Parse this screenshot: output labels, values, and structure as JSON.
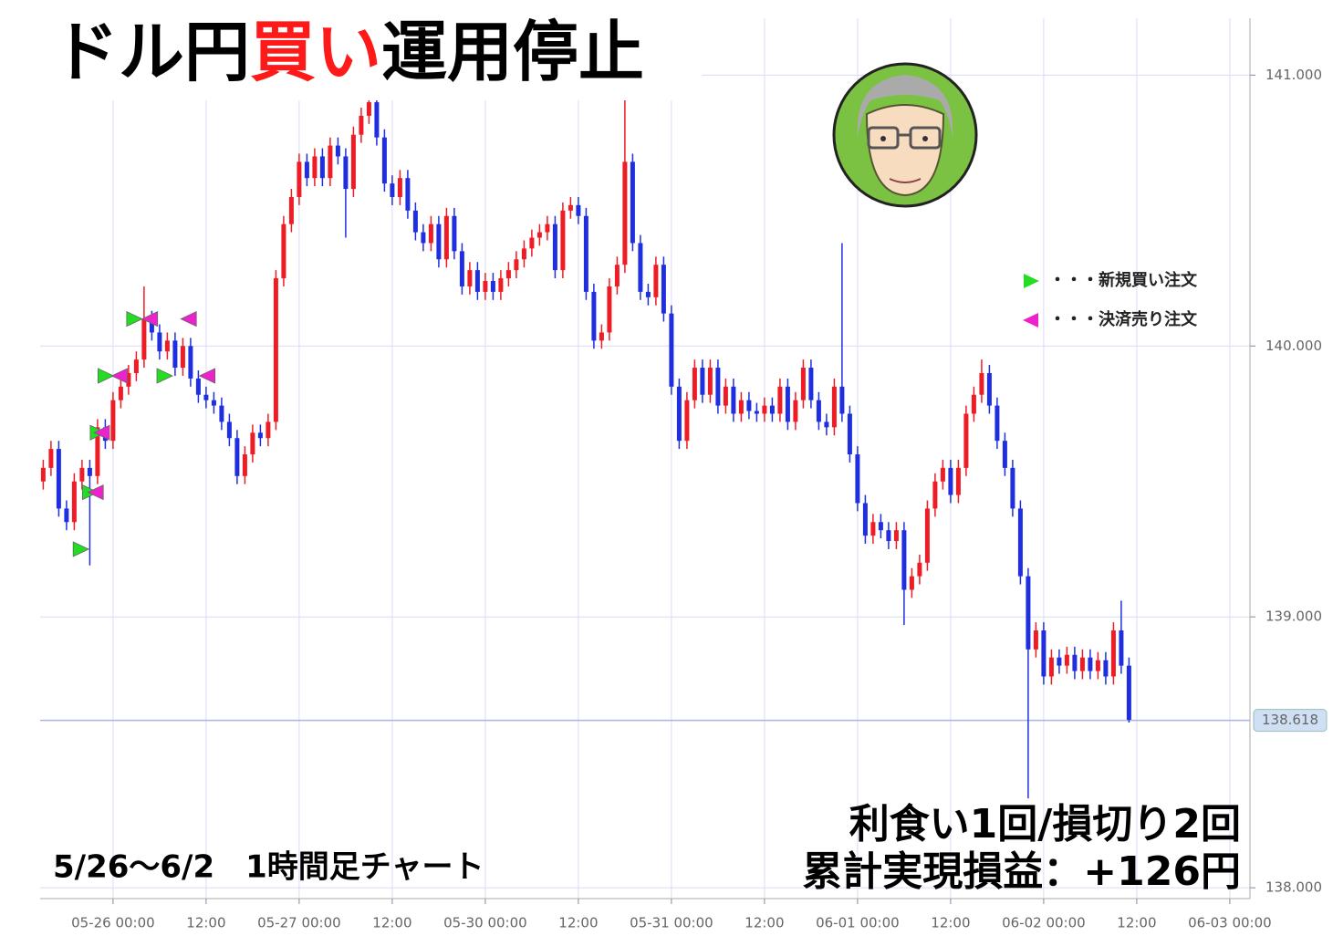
{
  "chart_data": {
    "type": "candlestick",
    "title_parts": [
      {
        "text": "ドル円",
        "color": "#000000"
      },
      {
        "text": "買い",
        "color": "#ff1a1a"
      },
      {
        "text": "運用停止",
        "color": "#000000"
      }
    ],
    "period_label": "5/26〜6/2　1時間足チャート",
    "result_lines": [
      "利食い1回/損切り2回",
      "累計実現損益：+126円"
    ],
    "up_color": "#ee1c25",
    "down_color": "#1f2fe0",
    "x": [
      -9,
      -8,
      -7,
      -6,
      -5,
      -4,
      -3,
      -2,
      -1,
      0,
      1,
      2,
      3,
      4,
      5,
      6,
      7,
      8,
      9,
      10,
      11,
      12,
      13,
      14,
      15,
      16,
      17,
      18,
      19,
      20,
      21,
      22,
      23,
      24,
      25,
      26,
      27,
      28,
      29,
      30,
      31,
      32,
      33,
      34,
      35,
      36,
      37,
      38,
      39,
      40,
      41,
      42,
      43,
      44,
      45,
      46,
      47,
      48,
      49,
      50,
      51,
      52,
      53,
      54,
      55,
      56,
      57,
      58,
      59,
      60,
      61,
      62,
      63,
      64,
      65,
      66,
      67,
      68,
      69,
      70,
      71,
      72,
      73,
      74,
      75,
      76,
      77,
      78,
      79,
      80,
      81,
      82,
      83,
      84,
      85,
      86,
      87,
      88,
      89,
      90,
      91,
      92,
      93,
      94,
      95,
      96,
      97,
      98,
      99,
      100,
      101,
      102,
      103,
      104,
      105,
      106,
      107,
      108,
      109,
      110,
      111,
      112,
      113,
      114,
      115,
      116,
      117,
      118,
      119,
      120,
      121,
      122,
      123,
      124,
      125,
      126,
      127,
      128,
      129,
      130,
      131
    ],
    "open": [
      139.5,
      139.55,
      139.62,
      139.4,
      139.35,
      139.5,
      139.55,
      139.52,
      139.7,
      139.65,
      139.8,
      139.85,
      139.9,
      139.95,
      140.1,
      140.05,
      139.98,
      140.02,
      139.92,
      140,
      139.88,
      139.82,
      139.8,
      139.78,
      139.72,
      139.66,
      139.52,
      139.6,
      139.68,
      139.66,
      139.72,
      140.25,
      140.45,
      140.55,
      140.68,
      140.62,
      140.7,
      140.62,
      140.74,
      140.7,
      140.58,
      140.78,
      140.85,
      140.9,
      140.77,
      140.6,
      140.55,
      140.62,
      140.5,
      140.42,
      140.38,
      140.45,
      140.32,
      140.48,
      140.35,
      140.22,
      140.28,
      140.2,
      140.24,
      140.2,
      140.25,
      140.28,
      140.32,
      140.36,
      140.4,
      140.42,
      140.45,
      140.28,
      140.5,
      140.52,
      140.48,
      140.2,
      140.02,
      140.05,
      140.22,
      140.3,
      140.68,
      140.38,
      140.2,
      140.18,
      140.3,
      140.12,
      139.85,
      139.65,
      139.8,
      139.92,
      139.82,
      139.92,
      139.78,
      139.85,
      139.75,
      139.8,
      139.76,
      139.75,
      139.78,
      139.75,
      139.85,
      139.72,
      139.8,
      139.92,
      139.8,
      139.72,
      139.7,
      139.85,
      139.75,
      139.6,
      139.42,
      139.3,
      139.35,
      139.32,
      139.28,
      139.32,
      139.1,
      139.15,
      139.2,
      139.4,
      139.5,
      139.55,
      139.45,
      139.55,
      139.75,
      139.82,
      139.9,
      139.78,
      139.65,
      139.55,
      139.4,
      139.15,
      138.88,
      138.95,
      138.78,
      138.85,
      138.82,
      138.86,
      138.8,
      138.85,
      138.8,
      138.84,
      138.78,
      138.95,
      138.82
    ],
    "high": [
      139.58,
      139.65,
      139.65,
      139.43,
      139.53,
      139.58,
      139.58,
      139.73,
      139.73,
      139.83,
      139.88,
      139.93,
      139.98,
      140.22,
      140.13,
      140.08,
      140.05,
      140.05,
      140.03,
      140.03,
      139.91,
      139.85,
      139.83,
      139.81,
      139.75,
      139.69,
      139.63,
      139.71,
      139.71,
      139.75,
      140.28,
      140.48,
      140.58,
      140.71,
      140.71,
      140.73,
      140.73,
      140.77,
      140.77,
      140.73,
      140.81,
      140.88,
      140.93,
      140.95,
      140.8,
      140.63,
      140.65,
      140.65,
      140.53,
      140.45,
      140.48,
      140.48,
      140.51,
      140.51,
      140.38,
      140.31,
      140.31,
      140.27,
      140.27,
      140.28,
      140.31,
      140.35,
      140.39,
      140.43,
      140.45,
      140.48,
      140.48,
      140.53,
      140.55,
      140.55,
      140.51,
      140.23,
      140.08,
      140.25,
      140.33,
      140.95,
      140.71,
      140.41,
      140.23,
      140.33,
      140.33,
      140.15,
      139.88,
      139.83,
      139.95,
      139.95,
      139.95,
      139.95,
      139.88,
      139.88,
      139.83,
      139.83,
      139.79,
      139.81,
      139.81,
      139.88,
      139.88,
      139.83,
      139.95,
      139.95,
      139.83,
      139.75,
      139.88,
      140.38,
      139.78,
      139.63,
      139.45,
      139.38,
      139.38,
      139.35,
      139.35,
      139.35,
      139.18,
      139.23,
      139.43,
      139.53,
      139.58,
      139.58,
      139.58,
      139.78,
      139.85,
      139.95,
      139.93,
      139.81,
      139.68,
      139.58,
      139.43,
      139.18,
      138.98,
      138.98,
      138.88,
      138.88,
      138.89,
      138.89,
      138.88,
      138.88,
      138.87,
      138.87,
      138.98,
      139.06,
      138.85
    ],
    "low": [
      139.47,
      139.52,
      139.37,
      139.32,
      139.32,
      139.47,
      139.19,
      139.49,
      139.62,
      139.62,
      139.77,
      139.82,
      139.87,
      139.92,
      140.02,
      139.95,
      139.95,
      139.89,
      139.89,
      139.85,
      139.79,
      139.77,
      139.75,
      139.69,
      139.63,
      139.49,
      139.49,
      139.57,
      139.63,
      139.63,
      139.69,
      140.22,
      140.42,
      140.52,
      140.59,
      140.59,
      140.59,
      140.59,
      140.67,
      140.4,
      140.55,
      140.75,
      140.82,
      140.74,
      140.57,
      140.52,
      140.52,
      140.47,
      140.39,
      140.35,
      140.35,
      140.29,
      140.29,
      140.32,
      140.19,
      140.19,
      140.17,
      140.17,
      140.17,
      140.17,
      140.22,
      140.25,
      140.29,
      140.33,
      140.37,
      140.39,
      140.25,
      140.25,
      140.47,
      140.45,
      140.17,
      139.99,
      139.99,
      140.02,
      140.19,
      140.27,
      140.35,
      140.17,
      140.15,
      140.15,
      140.09,
      139.82,
      139.62,
      139.62,
      139.77,
      139.79,
      139.79,
      139.75,
      139.75,
      139.72,
      139.72,
      139.73,
      139.72,
      139.72,
      139.72,
      139.72,
      139.69,
      139.69,
      139.77,
      139.77,
      139.69,
      139.67,
      139.67,
      139.72,
      139.57,
      139.39,
      139.27,
      139.27,
      139.29,
      139.25,
      139.25,
      138.97,
      139.07,
      139.12,
      139.17,
      139.37,
      139.47,
      139.42,
      139.42,
      139.52,
      139.72,
      139.79,
      139.75,
      139.62,
      139.52,
      139.37,
      139.12,
      138.33,
      138.85,
      138.75,
      138.75,
      138.79,
      138.79,
      138.77,
      138.77,
      138.77,
      138.77,
      138.75,
      138.75,
      138.79,
      138.61
    ],
    "close": [
      139.55,
      139.62,
      139.4,
      139.35,
      139.5,
      139.55,
      139.52,
      139.7,
      139.65,
      139.8,
      139.85,
      139.9,
      139.95,
      140.1,
      140.05,
      139.98,
      140.02,
      139.92,
      140,
      139.88,
      139.82,
      139.8,
      139.78,
      139.72,
      139.66,
      139.52,
      139.6,
      139.68,
      139.66,
      139.72,
      140.25,
      140.45,
      140.55,
      140.68,
      140.62,
      140.7,
      140.62,
      140.74,
      140.7,
      140.58,
      140.78,
      140.85,
      140.9,
      140.77,
      140.6,
      140.55,
      140.62,
      140.5,
      140.42,
      140.38,
      140.45,
      140.32,
      140.48,
      140.35,
      140.22,
      140.28,
      140.2,
      140.24,
      140.2,
      140.25,
      140.28,
      140.32,
      140.36,
      140.4,
      140.42,
      140.45,
      140.28,
      140.5,
      140.52,
      140.48,
      140.2,
      140.02,
      140.05,
      140.22,
      140.3,
      140.68,
      140.38,
      140.2,
      140.18,
      140.3,
      140.12,
      139.85,
      139.65,
      139.8,
      139.92,
      139.82,
      139.92,
      139.78,
      139.85,
      139.75,
      139.8,
      139.76,
      139.75,
      139.78,
      139.75,
      139.85,
      139.72,
      139.8,
      139.92,
      139.8,
      139.72,
      139.7,
      139.85,
      139.75,
      139.6,
      139.42,
      139.3,
      139.35,
      139.32,
      139.28,
      139.32,
      139.1,
      139.15,
      139.2,
      139.4,
      139.5,
      139.55,
      139.45,
      139.55,
      139.75,
      139.82,
      139.9,
      139.78,
      139.65,
      139.55,
      139.4,
      139.15,
      138.88,
      138.95,
      138.78,
      138.85,
      138.82,
      138.86,
      138.8,
      138.85,
      138.8,
      138.84,
      138.78,
      138.95,
      138.82,
      138.62
    ],
    "last_price": 138.618,
    "buy_orders": {
      "name": "・・・新規買い注文",
      "color": "#22dd22",
      "x": [
        -4.2,
        -3,
        -1,
        2.7,
        6.6,
        -2
      ],
      "y": [
        139.25,
        139.46,
        139.89,
        140.1,
        139.89,
        139.68
      ]
    },
    "sell_orders": {
      "name": "・・・決済売り注文",
      "color": "#ee22cc",
      "x": [
        -2.2,
        0.9,
        4.8,
        9.8,
        12.2,
        -1.4
      ],
      "y": [
        139.46,
        139.89,
        140.1,
        140.1,
        139.89,
        139.68
      ]
    },
    "xlim": [
      -9.4,
      146.6
    ],
    "xticks": [
      {
        "value": 0,
        "label": "05-26 00:00"
      },
      {
        "value": 12,
        "label": "12:00"
      },
      {
        "value": 24,
        "label": "05-27 00:00"
      },
      {
        "value": 36,
        "label": "12:00"
      },
      {
        "value": 48,
        "label": "05-30 00:00"
      },
      {
        "value": 60,
        "label": "12:00"
      },
      {
        "value": 72,
        "label": "05-31 00:00"
      },
      {
        "value": 84,
        "label": "12:00"
      },
      {
        "value": 96,
        "label": "06-01 00:00"
      },
      {
        "value": 108,
        "label": "12:00"
      },
      {
        "value": 120,
        "label": "06-02 00:00"
      },
      {
        "value": 132,
        "label": "12:00"
      },
      {
        "value": 144,
        "label": "06-03 00:00"
      }
    ],
    "ylim": [
      137.96,
      141.21
    ],
    "yticks": [
      {
        "value": 138,
        "label": "138.000"
      },
      {
        "value": 139,
        "label": "139.000"
      },
      {
        "value": 140,
        "label": "140.000"
      },
      {
        "value": 141,
        "label": "141.000"
      }
    ],
    "grid": true
  }
}
